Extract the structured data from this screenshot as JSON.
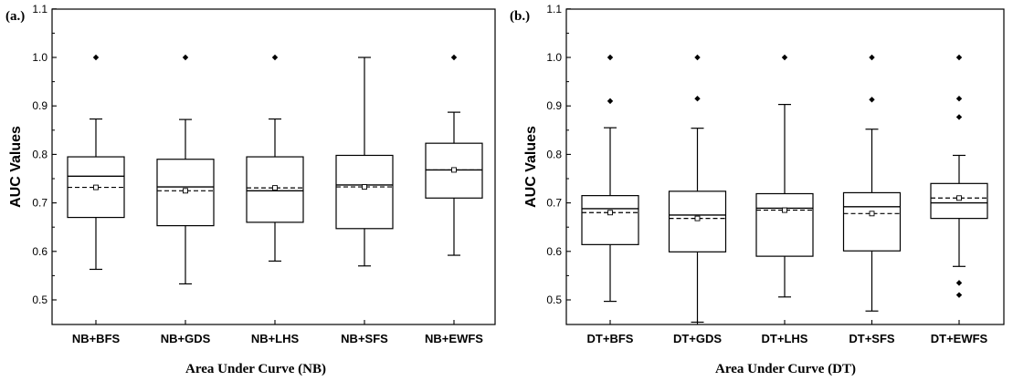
{
  "chart_data": [
    {
      "type": "box",
      "panel_label": "(a.)",
      "title": "",
      "xlabel": "Area Under Curve (NB)",
      "ylabel": "AUC Values",
      "ylim": [
        0.45,
        1.1
      ],
      "yticks": [
        0.5,
        0.6,
        0.7,
        0.8,
        0.9,
        1.0,
        1.1
      ],
      "ytick_labels": [
        "0.5",
        "0.6",
        "0.7",
        "0.8",
        "0.9",
        "1.0",
        "1.1"
      ],
      "categories": [
        "NB+BFS",
        "NB+GDS",
        "NB+LHS",
        "NB+SFS",
        "NB+EWFS"
      ],
      "boxes": [
        {
          "whisker_low": 0.563,
          "q1": 0.67,
          "median": 0.755,
          "q3": 0.795,
          "whisker_high": 0.873,
          "mean": 0.732,
          "outliers": [
            1.0
          ]
        },
        {
          "whisker_low": 0.533,
          "q1": 0.653,
          "median": 0.733,
          "q3": 0.79,
          "whisker_high": 0.872,
          "mean": 0.725,
          "outliers": [
            1.0
          ]
        },
        {
          "whisker_low": 0.58,
          "q1": 0.66,
          "median": 0.725,
          "q3": 0.795,
          "whisker_high": 0.873,
          "mean": 0.731,
          "outliers": [
            1.0
          ]
        },
        {
          "whisker_low": 0.57,
          "q1": 0.647,
          "median": 0.737,
          "q3": 0.798,
          "whisker_high": 1.0,
          "mean": 0.733,
          "outliers": []
        },
        {
          "whisker_low": 0.592,
          "q1": 0.71,
          "median": 0.768,
          "q3": 0.823,
          "whisker_high": 0.887,
          "mean": 0.768,
          "outliers": [
            1.0
          ]
        }
      ]
    },
    {
      "type": "box",
      "panel_label": "(b.)",
      "title": "",
      "xlabel": "Area Under Curve (DT)",
      "ylabel": "AUC Values",
      "ylim": [
        0.45,
        1.1
      ],
      "yticks": [
        0.5,
        0.6,
        0.7,
        0.8,
        0.9,
        1.0,
        1.1
      ],
      "ytick_labels": [
        "0.5",
        "0.6",
        "0.7",
        "0.8",
        "0.9",
        "1.0",
        "1.1"
      ],
      "categories": [
        "DT+BFS",
        "DT+GDS",
        "DT+LHS",
        "DT+SFS",
        "DT+EWFS"
      ],
      "boxes": [
        {
          "whisker_low": 0.497,
          "q1": 0.614,
          "median": 0.688,
          "q3": 0.715,
          "whisker_high": 0.855,
          "mean": 0.68,
          "outliers": [
            0.91,
            1.0
          ]
        },
        {
          "whisker_low": 0.454,
          "q1": 0.599,
          "median": 0.675,
          "q3": 0.724,
          "whisker_high": 0.854,
          "mean": 0.668,
          "outliers": [
            0.915,
            1.0
          ]
        },
        {
          "whisker_low": 0.506,
          "q1": 0.59,
          "median": 0.689,
          "q3": 0.719,
          "whisker_high": 0.903,
          "mean": 0.685,
          "outliers": [
            1.0
          ]
        },
        {
          "whisker_low": 0.477,
          "q1": 0.601,
          "median": 0.692,
          "q3": 0.721,
          "whisker_high": 0.852,
          "mean": 0.678,
          "outliers": [
            0.913,
            1.0
          ]
        },
        {
          "whisker_low": 0.569,
          "q1": 0.668,
          "median": 0.7,
          "q3": 0.74,
          "whisker_high": 0.798,
          "mean": 0.71,
          "outliers": [
            0.51,
            0.535,
            0.877,
            0.915,
            1.0
          ]
        }
      ]
    }
  ]
}
